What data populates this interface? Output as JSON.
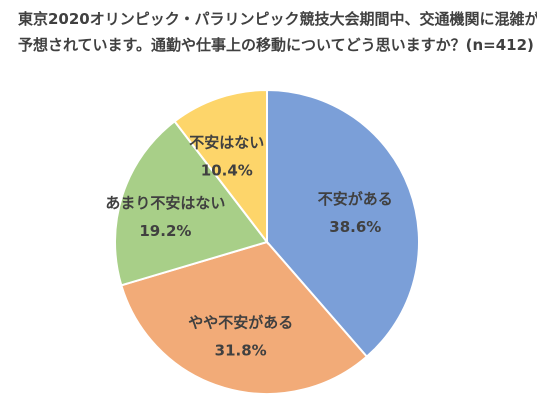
{
  "chart_data": {
    "type": "pie",
    "title": [
      "東京2020オリンピック・パラリンピック競技大会期間中、交通機関に混雑が",
      "予想されています。通勤や仕事上の移動についてどう思いますか？(n=412)"
    ],
    "slices": [
      {
        "label": "不安がある",
        "value": 38.6,
        "value_label": "38.6%",
        "color": "#7b9fd8"
      },
      {
        "label": "やや不安がある",
        "value": 31.8,
        "value_label": "31.8%",
        "color": "#f2ab78"
      },
      {
        "label": "あまり不安はない",
        "value": 19.2,
        "value_label": "19.2%",
        "color": "#a8cf88"
      },
      {
        "label": "不安はない",
        "value": 10.4,
        "value_label": "10.4%",
        "color": "#fdd56a"
      }
    ],
    "start_angle": "12 o'clock",
    "direction": "clockwise",
    "slice_border_color": "#ffffff",
    "legend": "none"
  }
}
